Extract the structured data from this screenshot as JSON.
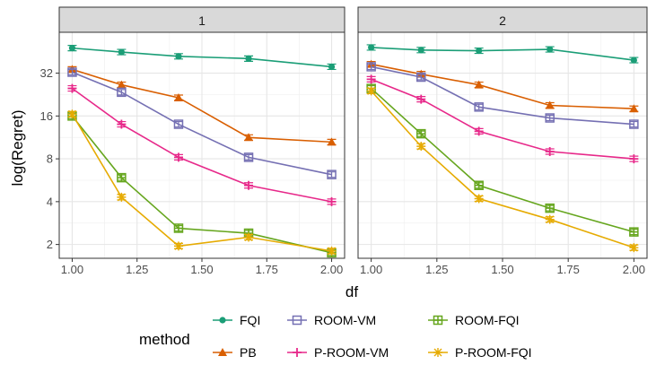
{
  "chart_data": {
    "type": "line",
    "xlabel": "df",
    "ylabel": "log(Regret)",
    "y_scale": "log2",
    "xlim": [
      0.95,
      2.05
    ],
    "ylim": [
      1.6,
      62
    ],
    "x_ticks": [
      1.0,
      1.25,
      1.5,
      1.75,
      2.0
    ],
    "x_tick_labels": [
      "1.00",
      "1.25",
      "1.50",
      "1.75",
      "2.00"
    ],
    "y_ticks": [
      2,
      4,
      8,
      16,
      32
    ],
    "y_tick_labels": [
      "2",
      "4",
      "8",
      "16",
      "32"
    ],
    "grid": true,
    "legend": {
      "title": "method",
      "position": "bottom"
    },
    "panels": [
      {
        "label": "1",
        "x": [
          1.0,
          1.19,
          1.41,
          1.68,
          2.0
        ],
        "series": [
          {
            "name": "FQI",
            "color": "#1B9E77",
            "marker": "circle",
            "values": [
              48,
              45,
              42,
              40.5,
              35.5
            ]
          },
          {
            "name": "PB",
            "color": "#D95F02",
            "marker": "triangle",
            "values": [
              34,
              26.5,
              21.5,
              11.3,
              10.5
            ]
          },
          {
            "name": "ROOM-VM",
            "color": "#7570B3",
            "marker": "square",
            "values": [
              32.5,
              23.5,
              14,
              8.2,
              6.2
            ]
          },
          {
            "name": "P-ROOM-VM",
            "color": "#E7298A",
            "marker": "plus",
            "values": [
              25,
              14,
              8.2,
              5.2,
              4.0
            ]
          },
          {
            "name": "ROOM-FQI",
            "color": "#66A61E",
            "marker": "boxplus",
            "values": [
              16,
              5.9,
              2.6,
              2.4,
              1.75
            ]
          },
          {
            "name": "P-ROOM-FQI",
            "color": "#E6AB02",
            "marker": "asterisk",
            "values": [
              16.5,
              4.3,
              1.95,
              2.25,
              1.8
            ]
          }
        ]
      },
      {
        "label": "2",
        "x": [
          1.0,
          1.19,
          1.41,
          1.68,
          2.0
        ],
        "series": [
          {
            "name": "FQI",
            "color": "#1B9E77",
            "marker": "circle",
            "values": [
              48.5,
              46.5,
              46,
              47,
              39.5
            ]
          },
          {
            "name": "PB",
            "color": "#D95F02",
            "marker": "triangle",
            "values": [
              37,
              31.5,
              26.5,
              19,
              18
            ]
          },
          {
            "name": "ROOM-VM",
            "color": "#7570B3",
            "marker": "square",
            "values": [
              35.5,
              30,
              18.5,
              15.5,
              14
            ]
          },
          {
            "name": "P-ROOM-VM",
            "color": "#E7298A",
            "marker": "plus",
            "values": [
              29,
              21,
              12.5,
              9,
              8
            ]
          },
          {
            "name": "ROOM-FQI",
            "color": "#66A61E",
            "marker": "boxplus",
            "values": [
              25,
              12,
              5.2,
              3.6,
              2.45
            ]
          },
          {
            "name": "P-ROOM-FQI",
            "color": "#E6AB02",
            "marker": "asterisk",
            "values": [
              24,
              9.8,
              4.2,
              3.0,
              1.9
            ]
          }
        ]
      }
    ]
  }
}
